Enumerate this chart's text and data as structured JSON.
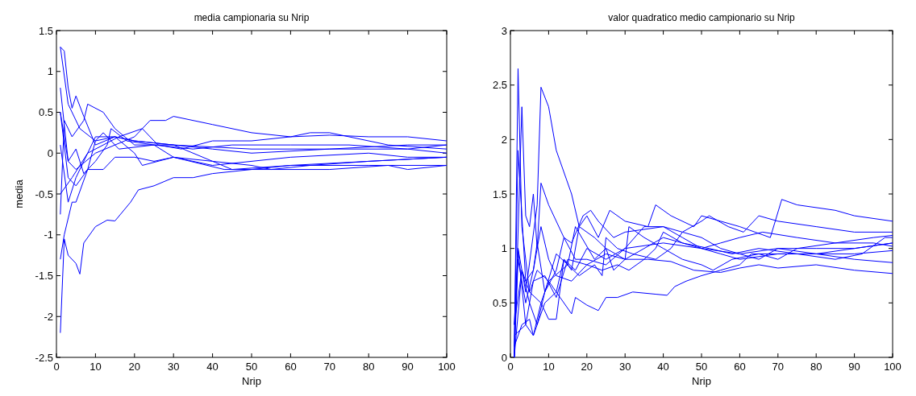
{
  "chart_data": [
    {
      "type": "line",
      "title": "media campionaria su Nrip",
      "xlabel": "Nrip",
      "ylabel": "media",
      "xlim": [
        0,
        100
      ],
      "ylim": [
        -2.5,
        1.5
      ],
      "xticks": [
        0,
        10,
        20,
        30,
        40,
        50,
        60,
        70,
        80,
        90,
        100
      ],
      "yticks": [
        -2.5,
        -2,
        -1.5,
        -1,
        -0.5,
        0,
        0.5,
        1,
        1.5
      ],
      "grid": false,
      "series": [
        {
          "color": "#0000ff",
          "x": [
            1,
            2,
            3,
            4,
            5,
            7,
            10,
            15,
            20,
            30,
            50,
            70,
            90,
            100
          ],
          "values": [
            1.3,
            1.25,
            0.8,
            0.55,
            0.7,
            0.45,
            0.1,
            0.2,
            0.15,
            0.1,
            0.05,
            0.05,
            0.1,
            0.1
          ]
        },
        {
          "color": "#0000ff",
          "x": [
            1,
            2,
            3,
            5,
            6,
            7,
            10,
            13,
            15,
            19,
            21,
            25,
            30,
            35,
            40,
            50,
            60,
            80,
            100
          ],
          "values": [
            -2.2,
            -1.05,
            -1.25,
            -1.35,
            -1.48,
            -1.1,
            -0.9,
            -0.82,
            -0.83,
            -0.6,
            -0.45,
            -0.4,
            -0.3,
            -0.3,
            -0.25,
            -0.2,
            -0.15,
            -0.15,
            -0.15
          ]
        },
        {
          "color": "#0000ff",
          "x": [
            1,
            3,
            5,
            10,
            15,
            20,
            24,
            28,
            30,
            40,
            50,
            60,
            70,
            80,
            90,
            100
          ],
          "values": [
            0.5,
            -0.1,
            -0.2,
            0,
            0.1,
            0.2,
            0.4,
            0.4,
            0.45,
            0.35,
            0.25,
            0.2,
            0.22,
            0.2,
            0.2,
            0.15
          ]
        },
        {
          "color": "#0000ff",
          "x": [
            1,
            2,
            4,
            7,
            8,
            12,
            15,
            20,
            30,
            40,
            45,
            60,
            80,
            100
          ],
          "values": [
            -0.75,
            0.4,
            0.2,
            0.4,
            0.6,
            0.5,
            0.3,
            0.1,
            0.1,
            -0.1,
            -0.2,
            -0.15,
            -0.1,
            -0.05
          ]
        },
        {
          "color": "#0000ff",
          "x": [
            1,
            2,
            4,
            5,
            8,
            10,
            15,
            20,
            30,
            40,
            50,
            70,
            90,
            100
          ],
          "values": [
            -1.3,
            -1,
            -0.6,
            -0.6,
            -0.2,
            0.15,
            0.2,
            0.15,
            0.1,
            0.05,
            0,
            0.05,
            0.05,
            0
          ]
        },
        {
          "color": "#0000ff",
          "x": [
            1,
            3,
            5,
            8,
            12,
            15,
            20,
            25,
            30,
            40,
            50,
            55,
            65,
            80,
            100
          ],
          "values": [
            0.5,
            -0.3,
            -0.4,
            -0.2,
            -0.2,
            -0.05,
            -0.05,
            -0.1,
            -0.05,
            -0.1,
            -0.15,
            -0.2,
            -0.15,
            -0.1,
            -0.05
          ]
        },
        {
          "color": "#0000ff",
          "x": [
            1,
            3,
            5,
            7,
            10,
            15,
            20,
            22,
            30,
            43,
            50,
            70,
            85,
            90,
            100
          ],
          "values": [
            0.1,
            -0.6,
            -0.3,
            -0.1,
            0.2,
            0.2,
            0,
            -0.15,
            -0.05,
            -0.2,
            -0.2,
            -0.2,
            -0.15,
            -0.2,
            -0.15
          ]
        },
        {
          "color": "#0000ff",
          "x": [
            1,
            3,
            6,
            10,
            12,
            16,
            25,
            35,
            45,
            60,
            75,
            90,
            100
          ],
          "values": [
            1.3,
            0.6,
            0.3,
            0.15,
            0.25,
            0.05,
            0.1,
            0.05,
            0.1,
            0.1,
            0.1,
            0.05,
            0.1
          ]
        },
        {
          "color": "#0000ff",
          "x": [
            1,
            3,
            5,
            7,
            10,
            13,
            14,
            18,
            25,
            30,
            40,
            50,
            60,
            80,
            90,
            100
          ],
          "values": [
            0.8,
            -0.1,
            0.05,
            -0.25,
            -0.1,
            0.1,
            0.3,
            0.15,
            0.1,
            -0.05,
            -0.15,
            -0.1,
            -0.05,
            0,
            -0.05,
            -0.05
          ]
        },
        {
          "color": "#0000ff",
          "x": [
            1,
            4,
            8,
            12,
            16,
            22,
            26,
            32,
            40,
            50,
            60,
            65,
            70,
            85,
            100
          ],
          "values": [
            -0.5,
            -0.3,
            0,
            0.1,
            0.2,
            0.3,
            0.1,
            0.05,
            0.15,
            0.15,
            0.2,
            0.25,
            0.25,
            0.1,
            0.05
          ]
        }
      ]
    },
    {
      "type": "line",
      "title": "valor quadratico medio campionario su Nrip",
      "xlabel": "Nrip",
      "xlim": [
        0,
        100
      ],
      "ylim": [
        0,
        3
      ],
      "xticks": [
        0,
        10,
        20,
        30,
        40,
        50,
        60,
        70,
        80,
        90,
        100
      ],
      "yticks": [
        0,
        0.5,
        1,
        1.5,
        2,
        2.5,
        3
      ],
      "grid": false,
      "series": [
        {
          "color": "#0000ff",
          "x": [
            1,
            2,
            4,
            7,
            8,
            10,
            12,
            16,
            18,
            22,
            25,
            30,
            36,
            42,
            48,
            55,
            60,
            65,
            70,
            80,
            90,
            100
          ],
          "values": [
            0.3,
            1,
            0.6,
            1.4,
            2.48,
            2.3,
            1.9,
            1.5,
            1.2,
            1.1,
            1,
            0.9,
            0.9,
            0.88,
            0.8,
            0.78,
            0.82,
            0.85,
            0.82,
            0.85,
            0.8,
            0.77
          ]
        },
        {
          "color": "#0000ff",
          "x": [
            1,
            2,
            3,
            5,
            8,
            10,
            12,
            14,
            17,
            20,
            25,
            30,
            40,
            50,
            60,
            70,
            80,
            90,
            100
          ],
          "values": [
            0,
            2.65,
            1.2,
            0.6,
            0.5,
            0.35,
            0.35,
            0.9,
            0.8,
            1,
            0.9,
            1,
            1.05,
            1,
            0.95,
            1,
            1,
            1,
            1.05
          ]
        },
        {
          "color": "#0000ff",
          "x": [
            1,
            3,
            4,
            5,
            6,
            7,
            8,
            10,
            14,
            17,
            20,
            25,
            30,
            35,
            40,
            45,
            50,
            55,
            60,
            70,
            80,
            90,
            100
          ],
          "values": [
            0,
            2.3,
            1.3,
            1.2,
            1.5,
            1,
            1.6,
            1.4,
            1.1,
            0.9,
            0.9,
            0.85,
            1,
            1.2,
            1.2,
            1.1,
            1,
            0.95,
            0.9,
            0.95,
            0.95,
            0.95,
            0.98
          ]
        },
        {
          "color": "#0000ff",
          "x": [
            1,
            3,
            5,
            6,
            8,
            10,
            13,
            16,
            17,
            20,
            23,
            25,
            28,
            32,
            38,
            41,
            43,
            46,
            50,
            55,
            60,
            63,
            70,
            80,
            90,
            100
          ],
          "values": [
            0.1,
            0.3,
            0.35,
            0.2,
            0.5,
            0.7,
            0.55,
            0.4,
            0.55,
            0.48,
            0.43,
            0.55,
            0.55,
            0.6,
            0.58,
            0.57,
            0.65,
            0.7,
            0.75,
            0.8,
            0.85,
            0.95,
            0.95,
            0.95,
            0.9,
            0.87
          ]
        },
        {
          "color": "#0000ff",
          "x": [
            1,
            4,
            6,
            9,
            12,
            14,
            16,
            18,
            20,
            23,
            26,
            30,
            36,
            38,
            42,
            48,
            50,
            55,
            60,
            68,
            71,
            75,
            85,
            90,
            100
          ],
          "values": [
            0.2,
            0.3,
            0.2,
            0.5,
            0.6,
            0.9,
            0.8,
            1.2,
            1.3,
            1.1,
            1.35,
            1.25,
            1.2,
            1.4,
            1.3,
            1.2,
            1.3,
            1.25,
            1.2,
            1.1,
            1.45,
            1.4,
            1.35,
            1.3,
            1.25
          ]
        },
        {
          "color": "#0000ff",
          "x": [
            1,
            2,
            4,
            6,
            7,
            9,
            12,
            14,
            16,
            19,
            21,
            23,
            27,
            30,
            40,
            45,
            50,
            55,
            60,
            65,
            70,
            80,
            90,
            100
          ],
          "values": [
            0,
            0.9,
            0.5,
            0.8,
            1.05,
            0.6,
            0.8,
            1.1,
            1.05,
            1.3,
            1.35,
            1.25,
            1.1,
            1.15,
            1.2,
            1.15,
            1.1,
            1,
            0.95,
            0.9,
            1,
            0.95,
            1,
            1.05
          ]
        },
        {
          "color": "#0000ff",
          "x": [
            1,
            3,
            5,
            7,
            10,
            15,
            18,
            22,
            24,
            25,
            28,
            32,
            38,
            42,
            45,
            50,
            52,
            57,
            61,
            65,
            70,
            80,
            90,
            100
          ],
          "values": [
            0.3,
            0.8,
            0.6,
            0.8,
            0.7,
            0.85,
            0.75,
            0.85,
            0.75,
            1.1,
            1,
            0.95,
            0.9,
            1,
            1.15,
            1.25,
            1.3,
            1.2,
            1.15,
            1.3,
            1.25,
            1.2,
            1.15,
            1.15
          ]
        },
        {
          "color": "#0000ff",
          "x": [
            1,
            3,
            5,
            7,
            9,
            12,
            15,
            17,
            22,
            25,
            27,
            30,
            31,
            35,
            40,
            45,
            50,
            53,
            58,
            65,
            70,
            75,
            85,
            95,
            100
          ],
          "values": [
            0,
            0.8,
            0.5,
            0.3,
            0.6,
            0.95,
            0.85,
            1.2,
            0.9,
            1,
            0.8,
            0.9,
            1.2,
            1.1,
            1,
            0.9,
            0.85,
            0.8,
            0.9,
            0.95,
            0.9,
            1,
            1.05,
            1.1,
            1.12
          ]
        },
        {
          "color": "#0000ff",
          "x": [
            1,
            2,
            4,
            6,
            8,
            10,
            12,
            16,
            20,
            24,
            28,
            31,
            35,
            38,
            40,
            45,
            52,
            58,
            65,
            75,
            85,
            92,
            98,
            100
          ],
          "values": [
            0.1,
            1.9,
            0.7,
            0.8,
            1.2,
            0.9,
            0.75,
            0.7,
            0.85,
            0.8,
            0.85,
            0.8,
            0.9,
            1,
            1.15,
            1.05,
            1,
            0.95,
            1,
            0.95,
            0.9,
            0.95,
            1.1,
            1.1
          ]
        },
        {
          "color": "#0000ff",
          "x": [
            1,
            2,
            4,
            6,
            9,
            12,
            15,
            20,
            25,
            30,
            35,
            40,
            45,
            50,
            55,
            60,
            66,
            75,
            85,
            95,
            100
          ],
          "values": [
            0,
            1,
            0.3,
            0.7,
            0.75,
            0.55,
            0.9,
            0.85,
            0.95,
            0.9,
            1,
            1.1,
            1.05,
            1,
            1.05,
            1.1,
            1.15,
            1.1,
            1.05,
            1.05,
            1.02
          ]
        }
      ]
    }
  ]
}
